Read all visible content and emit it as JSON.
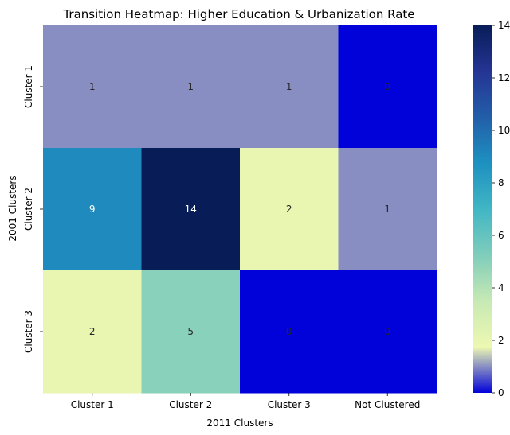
{
  "chart_data": {
    "type": "heatmap",
    "title": "Transition Heatmap: Higher Education & Urbanization Rate",
    "xlabel": "2011 Clusters",
    "ylabel": "2001 Clusters",
    "x_categories": [
      "Cluster 1",
      "Cluster 2",
      "Cluster 3",
      "Not Clustered"
    ],
    "y_categories": [
      "Cluster 1",
      "Cluster 2",
      "Cluster 3"
    ],
    "values": [
      [
        1,
        1,
        1,
        0
      ],
      [
        9,
        14,
        2,
        1
      ],
      [
        2,
        5,
        0,
        0
      ]
    ],
    "colorbar": {
      "range": [
        0,
        14
      ],
      "ticks": [
        0,
        2,
        4,
        6,
        8,
        10,
        12,
        14
      ],
      "colormap": "YlGnBu"
    }
  }
}
